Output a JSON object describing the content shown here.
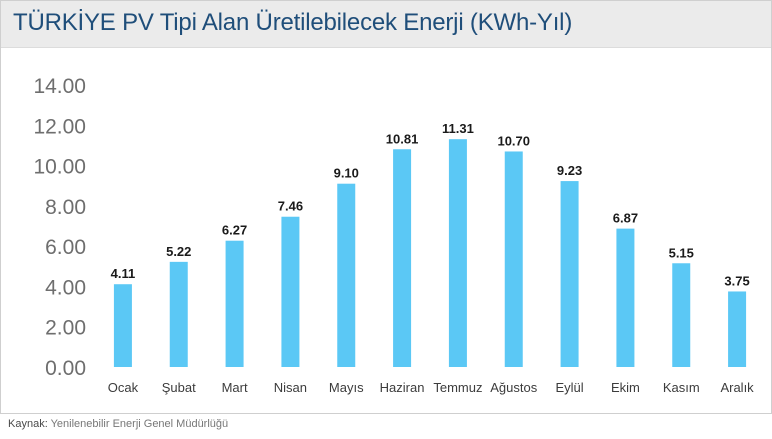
{
  "chart_data": {
    "type": "bar",
    "title": "TÜRKİYE PV Tipi Alan Üretilebilecek Enerji (KWh-Yıl)",
    "categories": [
      "Ocak",
      "Şubat",
      "Mart",
      "Nisan",
      "Mayıs",
      "Haziran",
      "Temmuz",
      "Ağustos",
      "Eylül",
      "Ekim",
      "Kasım",
      "Aralık"
    ],
    "values": [
      4.11,
      5.22,
      6.27,
      7.46,
      9.1,
      10.81,
      11.31,
      10.7,
      9.23,
      6.87,
      5.15,
      3.75
    ],
    "data_labels": [
      "4.11",
      "5.22",
      "6.27",
      "7.46",
      "9.10",
      "10.81",
      "11.31",
      "10.70",
      "9.23",
      "6.87",
      "5.15",
      "3.75"
    ],
    "yticks": [
      "0.00",
      "2.00",
      "4.00",
      "6.00",
      "8.00",
      "10.00",
      "12.00",
      "14.00"
    ],
    "ylim": [
      0,
      14
    ],
    "xlabel": "",
    "ylabel": "",
    "grid": false,
    "bar_color": "#5bc8f5"
  },
  "source": {
    "label": "Kaynak:",
    "text": "Yenilenebilir Enerji Genel Müdürlüğü"
  }
}
